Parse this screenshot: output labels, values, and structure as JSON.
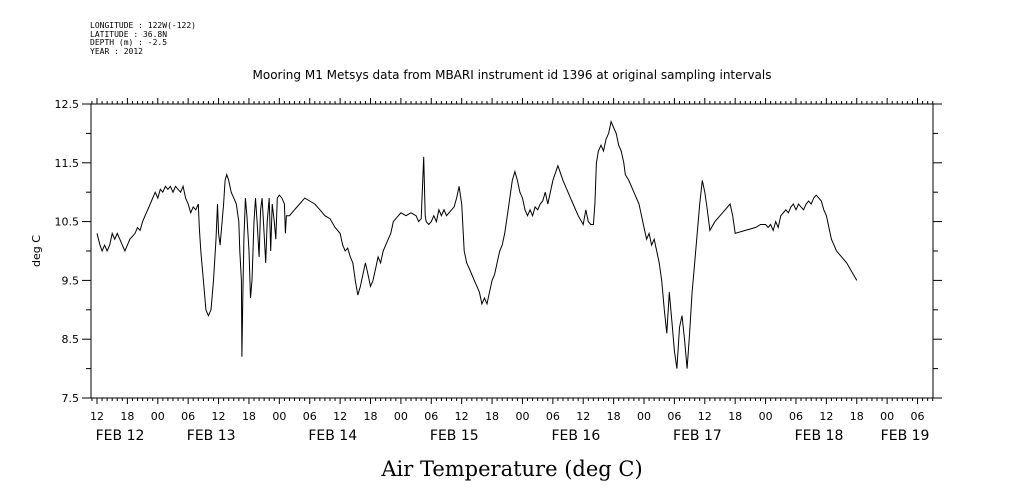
{
  "header": {
    "lines": [
      "LONGITUDE : 122W(-122)",
      "LATITUDE : 36.8N",
      "DEPTH (m) : -2.5",
      "YEAR : 2012"
    ]
  },
  "chart_data": {
    "type": "line",
    "title": "Mooring M1 Metsys data from MBARI instrument id 1396 at original sampling intervals",
    "xlabel": "Air Temperature (deg C)",
    "ylabel": "deg C",
    "ylim": [
      7.5,
      12.5
    ],
    "yticks": [
      "7.5",
      "8.5",
      "9.5",
      "10.5",
      "11.5",
      "12.5"
    ],
    "xlim_hours": [
      0,
      165
    ],
    "hour_tick_labels": [
      "12",
      "18",
      "00",
      "06",
      "12",
      "18",
      "00",
      "06",
      "12",
      "18",
      "00",
      "06",
      "12",
      "18",
      "00",
      "06",
      "12",
      "18",
      "00",
      "06",
      "12",
      "18",
      "00",
      "06",
      "12",
      "18",
      "00",
      "06"
    ],
    "date_labels": [
      "FEB 12",
      "FEB 13",
      "FEB 14",
      "FEB 15",
      "FEB 16",
      "FEB 17",
      "FEB 18",
      "FEB 19"
    ],
    "date_label_hours": [
      0,
      18,
      42,
      66,
      90,
      114,
      138,
      155
    ],
    "grid": false,
    "series": [
      {
        "color": "#000000",
        "x_unit": "hours since FEB 12 12:00",
        "points": [
          [
            0,
            10.3
          ],
          [
            0.6,
            10.1
          ],
          [
            1,
            10.0
          ],
          [
            1.5,
            10.1
          ],
          [
            2,
            10.0
          ],
          [
            2.5,
            10.1
          ],
          [
            3,
            10.3
          ],
          [
            3.5,
            10.2
          ],
          [
            4,
            10.3
          ],
          [
            4.5,
            10.2
          ],
          [
            5,
            10.1
          ],
          [
            5.5,
            10.0
          ],
          [
            6,
            10.1
          ],
          [
            6.5,
            10.2
          ],
          [
            7,
            10.25
          ],
          [
            7.5,
            10.3
          ],
          [
            8,
            10.4
          ],
          [
            8.5,
            10.35
          ],
          [
            9,
            10.5
          ],
          [
            9.5,
            10.6
          ],
          [
            10,
            10.7
          ],
          [
            10.5,
            10.8
          ],
          [
            11,
            10.9
          ],
          [
            11.5,
            11.0
          ],
          [
            12,
            10.9
          ],
          [
            12.5,
            11.05
          ],
          [
            13,
            11.0
          ],
          [
            13.5,
            11.1
          ],
          [
            14,
            11.05
          ],
          [
            14.5,
            11.1
          ],
          [
            15,
            11.0
          ],
          [
            15.5,
            11.1
          ],
          [
            16,
            11.05
          ],
          [
            16.5,
            11.0
          ],
          [
            17,
            11.1
          ],
          [
            17.5,
            10.9
          ],
          [
            18,
            10.8
          ],
          [
            18.5,
            10.65
          ],
          [
            19,
            10.75
          ],
          [
            19.5,
            10.7
          ],
          [
            20,
            10.8
          ],
          [
            20.2,
            10.4
          ],
          [
            20.5,
            10.0
          ],
          [
            21,
            9.5
          ],
          [
            21.5,
            9.0
          ],
          [
            22,
            8.9
          ],
          [
            22.5,
            9.0
          ],
          [
            23,
            9.5
          ],
          [
            23.5,
            10.2
          ],
          [
            23.8,
            10.8
          ],
          [
            24,
            10.3
          ],
          [
            24.3,
            10.1
          ],
          [
            24.6,
            10.4
          ],
          [
            25,
            10.8
          ],
          [
            25.3,
            11.2
          ],
          [
            25.6,
            11.3
          ],
          [
            26,
            11.2
          ],
          [
            26.5,
            11.0
          ],
          [
            27,
            10.9
          ],
          [
            27.5,
            10.8
          ],
          [
            28,
            10.5
          ],
          [
            28.2,
            10.0
          ],
          [
            28.5,
            9.5
          ],
          [
            28.6,
            8.2
          ],
          [
            28.8,
            9.3
          ],
          [
            29,
            10.2
          ],
          [
            29.3,
            10.9
          ],
          [
            29.6,
            10.6
          ],
          [
            30,
            10.0
          ],
          [
            30.3,
            9.2
          ],
          [
            30.6,
            9.5
          ],
          [
            31,
            10.5
          ],
          [
            31.3,
            10.9
          ],
          [
            31.6,
            10.5
          ],
          [
            32,
            9.9
          ],
          [
            32.3,
            10.7
          ],
          [
            32.6,
            10.9
          ],
          [
            33,
            10.3
          ],
          [
            33.3,
            9.8
          ],
          [
            33.6,
            10.5
          ],
          [
            34,
            10.9
          ],
          [
            34.3,
            10.0
          ],
          [
            34.6,
            10.8
          ],
          [
            35,
            10.5
          ],
          [
            35.3,
            10.2
          ],
          [
            35.6,
            10.9
          ],
          [
            36,
            10.95
          ],
          [
            36.5,
            10.9
          ],
          [
            37,
            10.8
          ],
          [
            37.2,
            10.3
          ],
          [
            37.4,
            10.6
          ],
          [
            38,
            10.6
          ],
          [
            39,
            10.7
          ],
          [
            40,
            10.8
          ],
          [
            41,
            10.9
          ],
          [
            42,
            10.85
          ],
          [
            43,
            10.8
          ],
          [
            44,
            10.7
          ],
          [
            45,
            10.6
          ],
          [
            46,
            10.55
          ],
          [
            47,
            10.4
          ],
          [
            48,
            10.3
          ],
          [
            48.5,
            10.1
          ],
          [
            49,
            10.0
          ],
          [
            49.5,
            10.05
          ],
          [
            50,
            9.9
          ],
          [
            50.5,
            9.8
          ],
          [
            51,
            9.5
          ],
          [
            51.5,
            9.25
          ],
          [
            52,
            9.4
          ],
          [
            52.5,
            9.6
          ],
          [
            53,
            9.8
          ],
          [
            53.5,
            9.6
          ],
          [
            54,
            9.4
          ],
          [
            54.5,
            9.5
          ],
          [
            55,
            9.7
          ],
          [
            55.5,
            9.9
          ],
          [
            56,
            9.8
          ],
          [
            56.5,
            10.0
          ],
          [
            57,
            10.1
          ],
          [
            57.5,
            10.2
          ],
          [
            58,
            10.3
          ],
          [
            58.5,
            10.5
          ],
          [
            59,
            10.55
          ],
          [
            59.5,
            10.6
          ],
          [
            60,
            10.65
          ],
          [
            61,
            10.6
          ],
          [
            62,
            10.65
          ],
          [
            63,
            10.6
          ],
          [
            63.5,
            10.5
          ],
          [
            64,
            10.55
          ],
          [
            64.5,
            11.6
          ],
          [
            64.8,
            10.6
          ],
          [
            65,
            10.5
          ],
          [
            65.5,
            10.45
          ],
          [
            66,
            10.5
          ],
          [
            66.5,
            10.6
          ],
          [
            67,
            10.5
          ],
          [
            67.5,
            10.7
          ],
          [
            68,
            10.6
          ],
          [
            68.5,
            10.7
          ],
          [
            69,
            10.6
          ],
          [
            69.5,
            10.65
          ],
          [
            70,
            10.7
          ],
          [
            70.5,
            10.75
          ],
          [
            71,
            10.9
          ],
          [
            71.5,
            11.1
          ],
          [
            72,
            10.8
          ],
          [
            72.5,
            10.0
          ],
          [
            73,
            9.8
          ],
          [
            73.5,
            9.7
          ],
          [
            74,
            9.6
          ],
          [
            74.5,
            9.5
          ],
          [
            75,
            9.4
          ],
          [
            75.5,
            9.3
          ],
          [
            76,
            9.1
          ],
          [
            76.5,
            9.2
          ],
          [
            77,
            9.1
          ],
          [
            77.5,
            9.3
          ],
          [
            78,
            9.5
          ],
          [
            78.5,
            9.6
          ],
          [
            79,
            9.8
          ],
          [
            79.5,
            10.0
          ],
          [
            80,
            10.1
          ],
          [
            80.5,
            10.3
          ],
          [
            81,
            10.6
          ],
          [
            81.5,
            10.9
          ],
          [
            82,
            11.2
          ],
          [
            82.5,
            11.35
          ],
          [
            83,
            11.2
          ],
          [
            83.5,
            11.0
          ],
          [
            84,
            10.9
          ],
          [
            84.5,
            10.7
          ],
          [
            85,
            10.6
          ],
          [
            85.5,
            10.7
          ],
          [
            86,
            10.6
          ],
          [
            86.5,
            10.75
          ],
          [
            87,
            10.7
          ],
          [
            87.5,
            10.8
          ],
          [
            88,
            10.85
          ],
          [
            88.5,
            11.0
          ],
          [
            89,
            10.8
          ],
          [
            90,
            11.2
          ],
          [
            91,
            11.45
          ],
          [
            92,
            11.2
          ],
          [
            93,
            11.0
          ],
          [
            94,
            10.8
          ],
          [
            95,
            10.6
          ],
          [
            96,
            10.45
          ],
          [
            96.5,
            10.7
          ],
          [
            97,
            10.5
          ],
          [
            97.5,
            10.45
          ],
          [
            98,
            10.45
          ],
          [
            98.3,
            10.8
          ],
          [
            98.6,
            11.5
          ],
          [
            99,
            11.7
          ],
          [
            99.5,
            11.8
          ],
          [
            100,
            11.7
          ],
          [
            100.5,
            11.9
          ],
          [
            101,
            12.0
          ],
          [
            101.5,
            12.2
          ],
          [
            102,
            12.1
          ],
          [
            102.5,
            12.0
          ],
          [
            103,
            11.8
          ],
          [
            103.5,
            11.7
          ],
          [
            104,
            11.5
          ],
          [
            104.3,
            11.3
          ],
          [
            105,
            11.2
          ],
          [
            106,
            11.0
          ],
          [
            107,
            10.8
          ],
          [
            107.5,
            10.6
          ],
          [
            108,
            10.4
          ],
          [
            108.5,
            10.2
          ],
          [
            109,
            10.3
          ],
          [
            109.5,
            10.1
          ],
          [
            110,
            10.2
          ],
          [
            110.5,
            10.0
          ],
          [
            111,
            9.8
          ],
          [
            111.5,
            9.5
          ],
          [
            112,
            9.0
          ],
          [
            112.5,
            8.6
          ],
          [
            113,
            9.3
          ],
          [
            113.5,
            8.8
          ],
          [
            114,
            8.3
          ],
          [
            114.5,
            8.0
          ],
          [
            115,
            8.7
          ],
          [
            115.5,
            8.9
          ],
          [
            116,
            8.5
          ],
          [
            116.5,
            8.0
          ],
          [
            117,
            8.6
          ],
          [
            117.5,
            9.3
          ],
          [
            118,
            9.8
          ],
          [
            118.5,
            10.3
          ],
          [
            119,
            10.8
          ],
          [
            119.5,
            11.2
          ],
          [
            120,
            11.0
          ],
          [
            120.5,
            10.7
          ],
          [
            121,
            10.35
          ],
          [
            122,
            10.5
          ],
          [
            123,
            10.6
          ],
          [
            124,
            10.7
          ],
          [
            125,
            10.8
          ],
          [
            125.5,
            10.6
          ],
          [
            126,
            10.3
          ],
          [
            128,
            10.35
          ],
          [
            130,
            10.4
          ],
          [
            131,
            10.45
          ],
          [
            132,
            10.45
          ],
          [
            132.5,
            10.4
          ],
          [
            133,
            10.45
          ],
          [
            133.5,
            10.35
          ],
          [
            134,
            10.5
          ],
          [
            134.5,
            10.4
          ],
          [
            135,
            10.6
          ],
          [
            135.5,
            10.65
          ],
          [
            136,
            10.7
          ],
          [
            136.5,
            10.65
          ],
          [
            137,
            10.75
          ],
          [
            137.5,
            10.8
          ],
          [
            138,
            10.7
          ],
          [
            138.5,
            10.8
          ],
          [
            139,
            10.75
          ],
          [
            139.5,
            10.7
          ],
          [
            140,
            10.8
          ],
          [
            140.5,
            10.85
          ],
          [
            141,
            10.8
          ],
          [
            141.5,
            10.9
          ],
          [
            142,
            10.95
          ],
          [
            142.5,
            10.9
          ],
          [
            143,
            10.85
          ],
          [
            143.5,
            10.7
          ],
          [
            144,
            10.6
          ],
          [
            144.5,
            10.4
          ],
          [
            145,
            10.2
          ],
          [
            145.5,
            10.1
          ],
          [
            146,
            10.0
          ],
          [
            147,
            9.9
          ],
          [
            148,
            9.8
          ],
          [
            149,
            9.65
          ],
          [
            150,
            9.5
          ]
        ]
      }
    ]
  }
}
